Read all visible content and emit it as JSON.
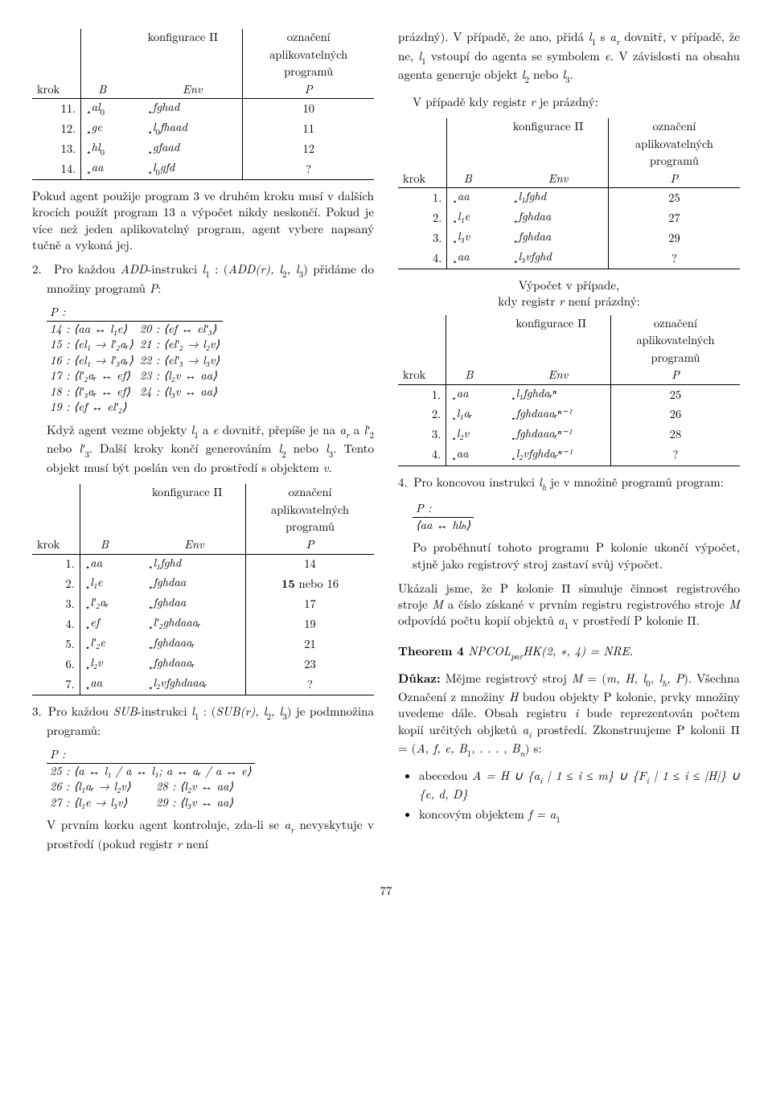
{
  "pageNumber": "77",
  "left": {
    "t1": {
      "head_conf": "konfigurace Π",
      "head_ozn1": "označení",
      "head_ozn2": "aplikovatelných",
      "head_ozn3": "programů",
      "hk": "krok",
      "hB": "B",
      "hE": "Env",
      "hP": "P",
      "r": [
        {
          "k": "11.",
          "B": "al",
          "Bs": "0",
          "E": "fghad",
          "P": "10"
        },
        {
          "k": "12.",
          "B": "ge",
          "Bs": "",
          "E": "l",
          "Es": "0",
          "E2": "fhaad",
          "P": "11"
        },
        {
          "k": "13.",
          "B": "hl",
          "Bs": "0",
          "E": "gfaad",
          "P": "12"
        },
        {
          "k": "14.",
          "B": "aa",
          "Bs": "",
          "E": "l",
          "Es": "0",
          "E2": "gfd",
          "P": "?"
        }
      ]
    },
    "para1": "Pokud agent použije program 3 ve druhém kroku musí v dalších krocích použít program 13 a výpočet nikdy neskončí. Pokud je více než jeden aplikovatelný program, agent vybere napsaný tučně a vykoná jej.",
    "item2_lead": "2.",
    "item2_textA": "Pro každou ",
    "item2_ADD": "ADD",
    "item2_textB": "-instrukci ",
    "item2_l1": "l",
    "item2_l1s": "1",
    "item2_textC": " : (",
    "item2_ADDr": "ADD(r), l",
    "item2_l2s": "2",
    "item2_comma": ", l",
    "item2_l3s": "3",
    "item2_textD": ") přidáme do množiny programů ",
    "item2_P": "P",
    "item2_colon": ":",
    "ptable1_head": "P :",
    "ptable1_left": [
      "14 :  ⟨aa ↔ l₁e⟩",
      "15 :  ⟨el₁ → l′₂aᵣ⟩",
      "16 :  ⟨el₁ → l′₃aᵣ⟩",
      "17 :  ⟨l′₂aᵣ ↔ ef⟩",
      "18 :  ⟨l′₃aᵣ ↔ ef⟩",
      "19 :  ⟨ef ↔ el′₂⟩"
    ],
    "ptable1_right": [
      "20 :  ⟨ef ↔ el′₃⟩",
      "21 :  ⟨el′₂ → l₂v⟩",
      "22 :  ⟨el′₃ → l₃v⟩",
      "23 :  ⟨l₂v ↔ aa⟩",
      "24 :  ⟨l₃v ↔ aa⟩",
      ""
    ],
    "para2a": "Když agent vezme objekty ",
    "para2b": " a ",
    "para2c": " dovnitř, přepíše je na ",
    "para2d": " a ",
    "para2e": " nebo ",
    "para2f": ". Další kroky končí generováním ",
    "para2g": " nebo ",
    "para2h": ". Tento objekt musí být poslán ven do prostředí s objektem ",
    "para2i": ".",
    "sym_l1": "l",
    "sym_l1s": "1",
    "sym_e": "e",
    "sym_ar": "a",
    "sym_ars": "r",
    "sym_lp2": "l′",
    "sym_lp2s": "2",
    "sym_lp3": "l′",
    "sym_lp3s": "3",
    "sym_l2": "l",
    "sym_l2s": "2",
    "sym_l3": "l",
    "sym_l3s": "3",
    "sym_v": "v",
    "t2": {
      "head_conf": "konfigurace Π",
      "head_ozn1": "označení",
      "head_ozn2": "aplikovatelných",
      "head_ozn3": "programů",
      "hk": "krok",
      "hB": "B",
      "hE": "Env",
      "hP": "P",
      "rows": [
        {
          "k": "1.",
          "B": "aa",
          "E": "l₁fghd",
          "P": "14"
        },
        {
          "k": "2.",
          "B": "l₁e",
          "E": "fghdaa",
          "P": "15 nebo 16",
          "Pb": true
        },
        {
          "k": "3.",
          "B": "l′₂aᵣ",
          "E": "fghdaa",
          "P": "17"
        },
        {
          "k": "4.",
          "B": "ef",
          "E": "l′₂ghdaaaᵣ",
          "P": "19"
        },
        {
          "k": "5.",
          "B": "l′₂e",
          "E": "fghdaaaᵣ",
          "P": "21"
        },
        {
          "k": "6.",
          "B": "l₂v",
          "E": "fghdaaaᵣ",
          "P": "23"
        },
        {
          "k": "7.",
          "B": "aa",
          "E": "l₂vfghdaaaᵣ",
          "P": "?"
        }
      ]
    },
    "item3_lead": "3.",
    "item3_a": "Pro každou ",
    "item3_SUB": "SUB",
    "item3_b": "-instrukci ",
    "item3_c": " : (",
    "item3_SUBr": "SUB(r), l",
    "item3_d": ") je podmnožina programů:",
    "ptable2_head": "P :",
    "ptable2_row1": "25 :  ⟨a ↔ l₁ / a ↔ l₁; a ↔ aᵣ / a ↔ e⟩",
    "ptable2_left": [
      "26 :  ⟨l₁aᵣ → l₂v⟩",
      "27 :  ⟨l₁e → l₃v⟩"
    ],
    "ptable2_right": [
      "28 :  ⟨l₂v ↔ aa⟩",
      "29 :  ⟨l₃v ↔ aa⟩"
    ],
    "para3": "V prvním korku agent kontroluje, zda-li se ",
    "para3b": " nevyskytuje v prostředí (pokud registr ",
    "para3c": " není",
    "sym_r": "r"
  },
  "right": {
    "para1a": "prázdný). V případě, že ano, přidá ",
    "para1b": " s ",
    "para1c": " dovnitř, v případě, že ne, ",
    "para1d": " vstoupí do agenta se symbolem ",
    "para1e": ". V závislosti na obsahu agenta generuje objekt ",
    "para1f": " nebo ",
    "para1g": ".",
    "sym_l1": "l",
    "sym_l1s": "1",
    "sym_ar": "a",
    "sym_ars": "r",
    "sym_e": "e",
    "sym_l2": "l",
    "sym_l2s": "2",
    "sym_l3": "l",
    "sym_l3s": "3",
    "sym_r": "r",
    "lead_empty": "V případě kdy registr ",
    "lead_empty2": " je prázdný:",
    "t1": {
      "head_conf": "konfigurace Π",
      "head_ozn1": "označení",
      "head_ozn2": "aplikovatelných",
      "head_ozn3": "programů",
      "hk": "krok",
      "hB": "B",
      "hE": "Env",
      "hP": "P",
      "rows": [
        {
          "k": "1.",
          "B": "aa",
          "E": "l₁fghd",
          "P": "25"
        },
        {
          "k": "2.",
          "B": "l₁e",
          "E": "fghdaa",
          "P": "27"
        },
        {
          "k": "3.",
          "B": "l₃v",
          "E": "fghdaa",
          "P": "29"
        },
        {
          "k": "4.",
          "B": "aa",
          "E": "l₃vfghd",
          "P": "?"
        }
      ]
    },
    "lead_nonempty1": "Výpočet v případe,",
    "lead_nonempty2": "kdy registr ",
    "lead_nonempty3": " není prázdný:",
    "t2": {
      "head_conf": "konfigurace Π",
      "head_ozn1": "označení",
      "head_ozn2": "aplikovatelných",
      "head_ozn3": "programů",
      "hk": "krok",
      "hB": "B",
      "hE": "Env",
      "hP": "P",
      "rows": [
        {
          "k": "1.",
          "B": "aa",
          "E": "l₁fghdaᵣⁿ",
          "P": "25"
        },
        {
          "k": "2.",
          "B": "l₁aᵣ",
          "E": "fghdaaaᵣⁿ⁻¹",
          "P": "26"
        },
        {
          "k": "3.",
          "B": "l₂v",
          "E": "fghdaaaᵣⁿ⁻¹",
          "P": "28"
        },
        {
          "k": "4.",
          "B": "aa",
          "E": "l₂vfghdaᵣⁿ⁻¹",
          "P": "?"
        }
      ]
    },
    "item4_lead": "4.",
    "item4_a": "Pro koncovou instrukci ",
    "item4_lh": "l",
    "item4_lhs": "h",
    "item4_b": " je v množině programů program:",
    "ptable3_head": "P :",
    "ptable3_row": "⟨aa ↔ hlₕ⟩",
    "para2": "Po proběhnutí tohoto programu P kolonie ukončí výpočet, stjně jako registrový stroj zastaví svůj výpočet.",
    "para3a": "Ukázali jsme, že P kolonie Π simuluje činnost registrového stroje ",
    "para3b": " a číslo získané v prvním registru registrového stroje ",
    "para3c": " odpovídá počtu kopií objektů ",
    "para3d": " v prostředí P kolonie Π.",
    "sym_M": "M",
    "sym_a1": "a",
    "sym_a1s": "1",
    "thm_lead": "Theorem 4",
    "thm_body": " NPCOL",
    "thm_sub": "par",
    "thm_body2": "HK(2, ∗, 4) = NRE.",
    "proof_lead": "Důkaz:",
    "proof_a": " Mějme registrový stroj ",
    "proof_b": " = (",
    "proof_tuple": "m, H, l",
    "proof_tuple0": "0",
    "proof_tuple2": ", l",
    "proof_tupleh": "h",
    "proof_tuple3": ", P",
    "proof_c": "). Všechna Označení z množiny ",
    "proof_d": " budou objekty P kolonie, prvky množiny uvedeme dále. Obsah registru ",
    "proof_e": " bude reprezentován počtem kopií určitých objketů ",
    "proof_f": " prostředí. Zkonstruujeme P kolonii Π = (",
    "proof_g": ") s:",
    "sym_H": "H",
    "sym_i": "i",
    "sym_ai": "a",
    "sym_ais": "i",
    "proof_cons": "A, f, e, B",
    "proof_cons1": "1",
    "proof_cons2": ", . . . , B",
    "proof_consn": "n",
    "bullet1a": "abecedou ",
    "bullet1A": "A = H ∪ {a",
    "bullet1Ai": "i",
    "bullet1b": " | 1 ≤ i ≤ m} ∪ {F",
    "bullet1Fi": "i",
    "bullet1c": " | 1 ≤ i ≤ |H|} ∪ {e, d, D}",
    "bullet2a": "koncovým objektem ",
    "bullet2b": "f = a",
    "bullet2s": "1"
  }
}
